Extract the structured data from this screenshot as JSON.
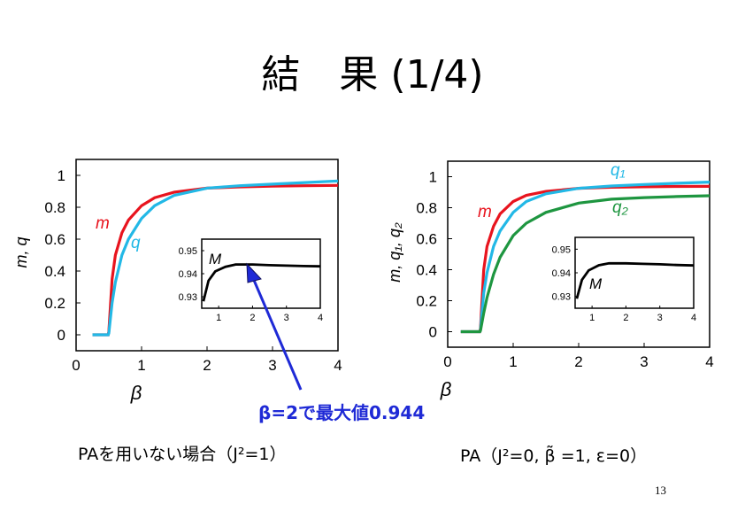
{
  "slide": {
    "title": "結　果 (1/4)",
    "annotation": "β=2で最大値0.944",
    "caption_left": "PAを用いない場合（J²=1）",
    "caption_right": "PA（J²=0,  β̃ =1, ε=0）",
    "page_number": "13"
  },
  "chart_data": [
    {
      "type": "line",
      "xlabel": "β",
      "ylabel": "m, q",
      "xlim": [
        0,
        4
      ],
      "ylim": [
        -0.1,
        1.1
      ],
      "xticks": [
        "0",
        "1",
        "2",
        "3",
        "4"
      ],
      "yticks": [
        "0",
        "0.2",
        "0.4",
        "0.6",
        "0.8",
        "1"
      ],
      "series": [
        {
          "name": "m",
          "color": "#e8141e",
          "x": [
            0.25,
            0.49,
            0.5,
            0.55,
            0.6,
            0.7,
            0.8,
            1.0,
            1.2,
            1.5,
            2.0,
            2.5,
            3.0,
            3.5,
            4.0
          ],
          "y": [
            0,
            0,
            0.02,
            0.35,
            0.5,
            0.64,
            0.72,
            0.81,
            0.86,
            0.895,
            0.92,
            0.928,
            0.932,
            0.935,
            0.937
          ]
        },
        {
          "name": "q",
          "color": "#22b8e6",
          "x": [
            0.25,
            0.49,
            0.5,
            0.55,
            0.6,
            0.7,
            0.8,
            1.0,
            1.2,
            1.5,
            2.0,
            2.5,
            3.0,
            3.5,
            4.0
          ],
          "y": [
            0,
            0,
            0.01,
            0.2,
            0.33,
            0.5,
            0.6,
            0.73,
            0.81,
            0.875,
            0.92,
            0.935,
            0.945,
            0.955,
            0.965
          ]
        }
      ],
      "inset": {
        "xlim": [
          0.5,
          4
        ],
        "ylim": [
          0.925,
          0.955
        ],
        "xticks": [
          "1",
          "2",
          "3",
          "4"
        ],
        "yticks": [
          "0.93",
          "0.94",
          "0.95"
        ],
        "series": [
          {
            "name": "M",
            "color": "#000000",
            "x": [
              0.55,
              0.7,
              0.9,
              1.2,
              1.5,
              2.0,
              2.5,
              3.0,
              3.5,
              4.0
            ],
            "y": [
              0.928,
              0.937,
              0.941,
              0.943,
              0.944,
              0.944,
              0.9437,
              0.9435,
              0.9433,
              0.9432
            ]
          }
        ]
      }
    },
    {
      "type": "line",
      "xlabel": "β",
      "ylabel": "m, q₁, q₂",
      "xlim": [
        0,
        4
      ],
      "ylim": [
        -0.1,
        1.1
      ],
      "xticks": [
        "0",
        "1",
        "2",
        "3",
        "4"
      ],
      "yticks": [
        "0",
        "0.2",
        "0.4",
        "0.6",
        "0.8",
        "1"
      ],
      "series": [
        {
          "name": "m",
          "color": "#e8141e",
          "x": [
            0.2,
            0.49,
            0.5,
            0.55,
            0.6,
            0.7,
            0.8,
            1.0,
            1.2,
            1.5,
            2.0,
            2.5,
            3.0,
            3.5,
            4.0
          ],
          "y": [
            0,
            0,
            0.02,
            0.4,
            0.55,
            0.68,
            0.76,
            0.84,
            0.88,
            0.905,
            0.925,
            0.932,
            0.935,
            0.937,
            0.938
          ]
        },
        {
          "name": "q₁",
          "color": "#22b8e6",
          "x": [
            0.2,
            0.49,
            0.5,
            0.55,
            0.6,
            0.7,
            0.8,
            1.0,
            1.2,
            1.5,
            2.0,
            2.5,
            3.0,
            3.5,
            4.0
          ],
          "y": [
            0,
            0,
            0.01,
            0.25,
            0.38,
            0.55,
            0.65,
            0.77,
            0.84,
            0.89,
            0.925,
            0.94,
            0.95,
            0.958,
            0.965
          ]
        },
        {
          "name": "q₂",
          "color": "#1e9640",
          "x": [
            0.2,
            0.49,
            0.5,
            0.55,
            0.6,
            0.7,
            0.8,
            1.0,
            1.2,
            1.5,
            2.0,
            2.5,
            3.0,
            3.5,
            4.0
          ],
          "y": [
            0,
            0,
            0.005,
            0.12,
            0.22,
            0.37,
            0.48,
            0.62,
            0.7,
            0.77,
            0.83,
            0.855,
            0.865,
            0.872,
            0.877
          ]
        }
      ],
      "inset": {
        "xlim": [
          0.5,
          4
        ],
        "ylim": [
          0.925,
          0.955
        ],
        "xticks": [
          "1",
          "2",
          "3",
          "4"
        ],
        "yticks": [
          "0.93",
          "0.94",
          "0.95"
        ],
        "series": [
          {
            "name": "M",
            "color": "#000000",
            "x": [
              0.55,
              0.7,
              0.9,
              1.2,
              1.5,
              2.0,
              2.5,
              3.0,
              3.5,
              4.0
            ],
            "y": [
              0.929,
              0.937,
              0.941,
              0.9432,
              0.944,
              0.944,
              0.9438,
              0.9436,
              0.9433,
              0.9431
            ]
          }
        ]
      }
    }
  ]
}
